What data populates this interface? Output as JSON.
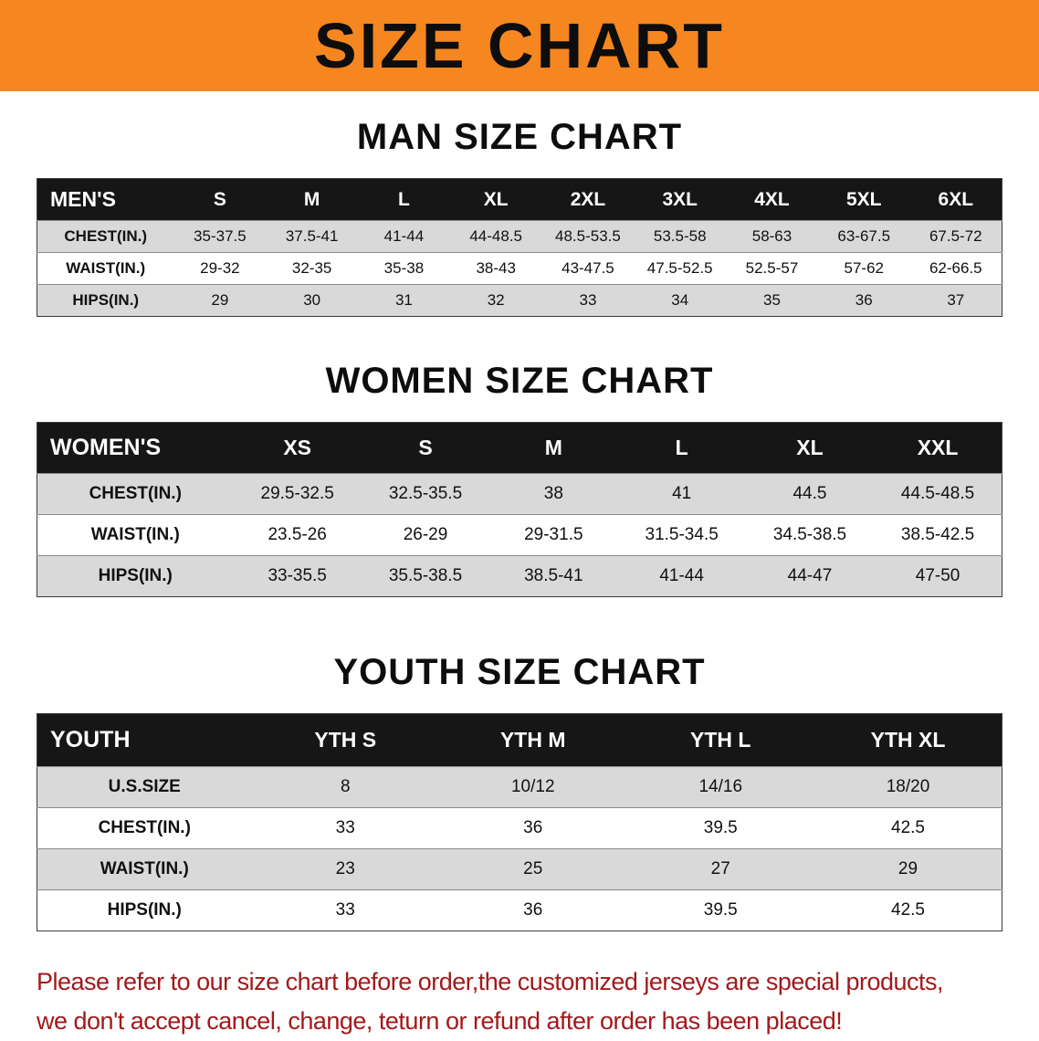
{
  "banner": {
    "title": "SIZE CHART"
  },
  "colors": {
    "banner_bg": "#f6861f",
    "table_header_bg": "#161616",
    "row_shade": "#d9d9d9",
    "footer_text": "#a2191a"
  },
  "sections": {
    "men": {
      "title": "MAN SIZE CHART",
      "table": {
        "header": [
          "MEN'S",
          "S",
          "M",
          "L",
          "XL",
          "2XL",
          "3XL",
          "4XL",
          "5XL",
          "6XL"
        ],
        "rows": [
          [
            "CHEST(IN.)",
            "35-37.5",
            "37.5-41",
            "41-44",
            "44-48.5",
            "48.5-53.5",
            "53.5-58",
            "58-63",
            "63-67.5",
            "67.5-72"
          ],
          [
            "WAIST(IN.)",
            "29-32",
            "32-35",
            "35-38",
            "38-43",
            "43-47.5",
            "47.5-52.5",
            "52.5-57",
            "57-62",
            "62-66.5"
          ],
          [
            "HIPS(IN.)",
            "29",
            "30",
            "31",
            "32",
            "33",
            "34",
            "35",
            "36",
            "37"
          ]
        ]
      }
    },
    "women": {
      "title": "WOMEN SIZE CHART",
      "table": {
        "header": [
          "WOMEN'S",
          "XS",
          "S",
          "M",
          "L",
          "XL",
          "XXL"
        ],
        "rows": [
          [
            "CHEST(IN.)",
            "29.5-32.5",
            "32.5-35.5",
            "38",
            "41",
            "44.5",
            "44.5-48.5"
          ],
          [
            "WAIST(IN.)",
            "23.5-26",
            "26-29",
            "29-31.5",
            "31.5-34.5",
            "34.5-38.5",
            "38.5-42.5"
          ],
          [
            "HIPS(IN.)",
            "33-35.5",
            "35.5-38.5",
            "38.5-41",
            "41-44",
            "44-47",
            "47-50"
          ]
        ]
      }
    },
    "youth": {
      "title": "YOUTH SIZE CHART",
      "table": {
        "header": [
          "YOUTH",
          "YTH S",
          "YTH M",
          "YTH L",
          "YTH XL"
        ],
        "rows": [
          [
            "U.S.SIZE",
            "8",
            "10/12",
            "14/16",
            "18/20"
          ],
          [
            "CHEST(IN.)",
            "33",
            "36",
            "39.5",
            "42.5"
          ],
          [
            "WAIST(IN.)",
            "23",
            "25",
            "27",
            "29"
          ],
          [
            "HIPS(IN.)",
            "33",
            "36",
            "39.5",
            "42.5"
          ]
        ]
      }
    }
  },
  "footer": {
    "line1": "Please refer to our size chart before order,the customized jerseys are special products,",
    "line2": "we don't accept cancel, change, teturn or refund after order has been placed!"
  }
}
